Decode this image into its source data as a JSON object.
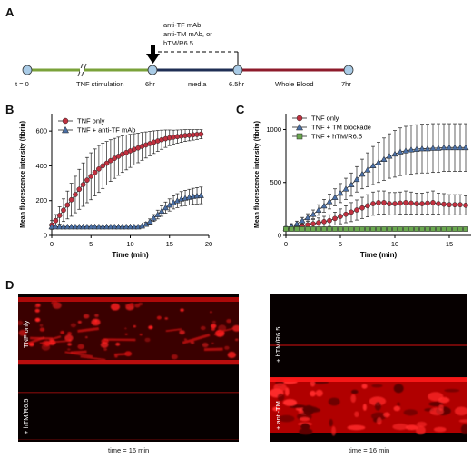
{
  "panels": {
    "a": "A",
    "b": "B",
    "c": "C",
    "d": "D"
  },
  "timeline": {
    "t0": "t = 0",
    "tnf": "TNF stimulation",
    "t6": "6hr",
    "media": "media",
    "t65": "6.5hr",
    "whole_blood": "Whole Blood",
    "t7": "7hr",
    "treat1": "anti-TF mAb",
    "treat2": "anti-TM mAb, or",
    "treat3": "hTM/R6.5",
    "colors": {
      "tnf": "#7aa23a",
      "media": "#1f2f55",
      "blood": "#8e1b2b",
      "node": "#a9cbe6"
    }
  },
  "chart_data": [
    {
      "type": "line",
      "xlabel": "Time (min)",
      "ylabel": "Mean fluorescence intensity (fibrin)",
      "xlim": [
        0,
        20
      ],
      "ylim": [
        0,
        700
      ],
      "xticks": [
        0,
        5,
        10,
        15,
        20
      ],
      "yticks": [
        0,
        200,
        400,
        600
      ],
      "legend": "top-left",
      "series": [
        {
          "name": "TNF only",
          "marker": "circle",
          "color": "#c0303f",
          "x": [
            0,
            0.5,
            1,
            1.5,
            2,
            2.5,
            3,
            3.5,
            4,
            4.5,
            5,
            5.5,
            6,
            6.5,
            7,
            7.5,
            8,
            8.5,
            9,
            9.5,
            10,
            10.5,
            11,
            11.5,
            12,
            12.5,
            13,
            13.5,
            14,
            14.5,
            15,
            15.5,
            16,
            16.5,
            17,
            17.5,
            18,
            18.5,
            19
          ],
          "y": [
            60,
            85,
            115,
            145,
            175,
            205,
            235,
            265,
            292,
            318,
            340,
            362,
            382,
            400,
            415,
            430,
            443,
            455,
            467,
            477,
            486,
            495,
            503,
            512,
            520,
            528,
            536,
            543,
            550,
            556,
            561,
            565,
            568,
            571,
            574,
            576,
            578,
            580,
            582
          ],
          "err": [
            25,
            35,
            50,
            65,
            80,
            95,
            105,
            115,
            125,
            130,
            135,
            135,
            135,
            130,
            125,
            120,
            115,
            110,
            105,
            100,
            95,
            90,
            85,
            80,
            75,
            70,
            65,
            60,
            55,
            50,
            45,
            40,
            38,
            36,
            34,
            32,
            30,
            28,
            26
          ]
        },
        {
          "name": "TNF + anti-TF mAb",
          "marker": "triangle",
          "color": "#4a6fa5",
          "x": [
            0,
            0.5,
            1,
            1.5,
            2,
            2.5,
            3,
            3.5,
            4,
            4.5,
            5,
            5.5,
            6,
            6.5,
            7,
            7.5,
            8,
            8.5,
            9,
            9.5,
            10,
            10.5,
            11,
            11.5,
            12,
            12.5,
            13,
            13.5,
            14,
            14.5,
            15,
            15.5,
            16,
            16.5,
            17,
            17.5,
            18,
            18.5,
            19
          ],
          "y": [
            50,
            50,
            50,
            50,
            50,
            50,
            50,
            50,
            50,
            50,
            50,
            50,
            50,
            50,
            50,
            50,
            50,
            50,
            50,
            50,
            50,
            50,
            50,
            55,
            65,
            80,
            100,
            120,
            140,
            160,
            175,
            190,
            200,
            210,
            215,
            220,
            225,
            228,
            230
          ],
          "err": [
            0,
            0,
            0,
            0,
            0,
            0,
            0,
            0,
            0,
            0,
            0,
            0,
            0,
            0,
            0,
            0,
            0,
            0,
            0,
            0,
            0,
            0,
            0,
            5,
            10,
            15,
            20,
            25,
            30,
            32,
            35,
            38,
            40,
            42,
            44,
            45,
            46,
            47,
            48
          ]
        }
      ]
    },
    {
      "type": "line",
      "xlabel": "Time (min)",
      "ylabel": "Mean fluorescence intensity (fibrin)",
      "xlim": [
        0,
        17
      ],
      "ylim": [
        0,
        1150
      ],
      "xticks": [
        0,
        5,
        10,
        15
      ],
      "yticks": [
        0,
        500,
        1000
      ],
      "legend": "top-left",
      "series": [
        {
          "name": "TNF only",
          "marker": "circle",
          "color": "#c0303f",
          "x": [
            0,
            0.5,
            1,
            1.5,
            2,
            2.5,
            3,
            3.5,
            4,
            4.5,
            5,
            5.5,
            6,
            6.5,
            7,
            7.5,
            8,
            8.5,
            9,
            9.5,
            10,
            10.5,
            11,
            11.5,
            12,
            12.5,
            13,
            13.5,
            14,
            14.5,
            15,
            15.5,
            16,
            16.5
          ],
          "y": [
            60,
            70,
            80,
            90,
            100,
            110,
            120,
            130,
            140,
            160,
            180,
            200,
            220,
            240,
            260,
            280,
            300,
            310,
            310,
            300,
            300,
            305,
            310,
            305,
            300,
            300,
            305,
            310,
            300,
            295,
            290,
            290,
            290,
            285
          ],
          "err": [
            15,
            20,
            25,
            30,
            35,
            40,
            45,
            50,
            55,
            60,
            70,
            80,
            90,
            95,
            100,
            105,
            110,
            110,
            110,
            105,
            105,
            105,
            110,
            105,
            100,
            100,
            105,
            110,
            100,
            100,
            95,
            95,
            95,
            90
          ]
        },
        {
          "name": "TNF + TM blockade",
          "marker": "triangle",
          "color": "#4a6fa5",
          "x": [
            0,
            0.5,
            1,
            1.5,
            2,
            2.5,
            3,
            3.5,
            4,
            4.5,
            5,
            5.5,
            6,
            6.5,
            7,
            7.5,
            8,
            8.5,
            9,
            9.5,
            10,
            10.5,
            11,
            11.5,
            12,
            12.5,
            13,
            13.5,
            14,
            14.5,
            15,
            15.5,
            16,
            16.5
          ],
          "y": [
            70,
            90,
            110,
            140,
            170,
            200,
            240,
            280,
            320,
            360,
            400,
            440,
            480,
            530,
            580,
            620,
            660,
            690,
            720,
            750,
            770,
            790,
            800,
            810,
            815,
            820,
            820,
            825,
            825,
            830,
            830,
            830,
            830,
            830
          ],
          "err": [
            15,
            20,
            25,
            30,
            35,
            40,
            50,
            60,
            70,
            80,
            90,
            100,
            110,
            120,
            140,
            160,
            180,
            190,
            200,
            210,
            220,
            225,
            230,
            230,
            230,
            230,
            230,
            230,
            230,
            225,
            225,
            225,
            225,
            225
          ]
        },
        {
          "name": "TNF + hTM/R6.5",
          "marker": "square",
          "color": "#6aa84f",
          "x": [
            0,
            0.5,
            1,
            1.5,
            2,
            2.5,
            3,
            3.5,
            4,
            4.5,
            5,
            5.5,
            6,
            6.5,
            7,
            7.5,
            8,
            8.5,
            9,
            9.5,
            10,
            10.5,
            11,
            11.5,
            12,
            12.5,
            13,
            13.5,
            14,
            14.5,
            15,
            15.5,
            16,
            16.5
          ],
          "y": [
            60,
            60,
            60,
            60,
            60,
            60,
            60,
            60,
            60,
            60,
            60,
            60,
            60,
            60,
            60,
            60,
            60,
            60,
            60,
            60,
            60,
            60,
            60,
            60,
            60,
            60,
            60,
            60,
            60,
            60,
            60,
            60,
            60,
            60
          ],
          "err": [
            0,
            0,
            0,
            0,
            0,
            0,
            0,
            0,
            0,
            0,
            0,
            0,
            0,
            0,
            0,
            0,
            0,
            0,
            0,
            0,
            0,
            0,
            0,
            0,
            0,
            0,
            0,
            0,
            0,
            0,
            0,
            0,
            0,
            0
          ]
        }
      ]
    }
  ],
  "micrographs": {
    "left_top": "TNF only",
    "left_bottom": "+ hTM/R6.5",
    "left_caption": "time = 16 min",
    "right_top": "+ hTM/R6.5",
    "right_bottom": "+ anti-TM",
    "right_caption": "time = 16 min"
  }
}
